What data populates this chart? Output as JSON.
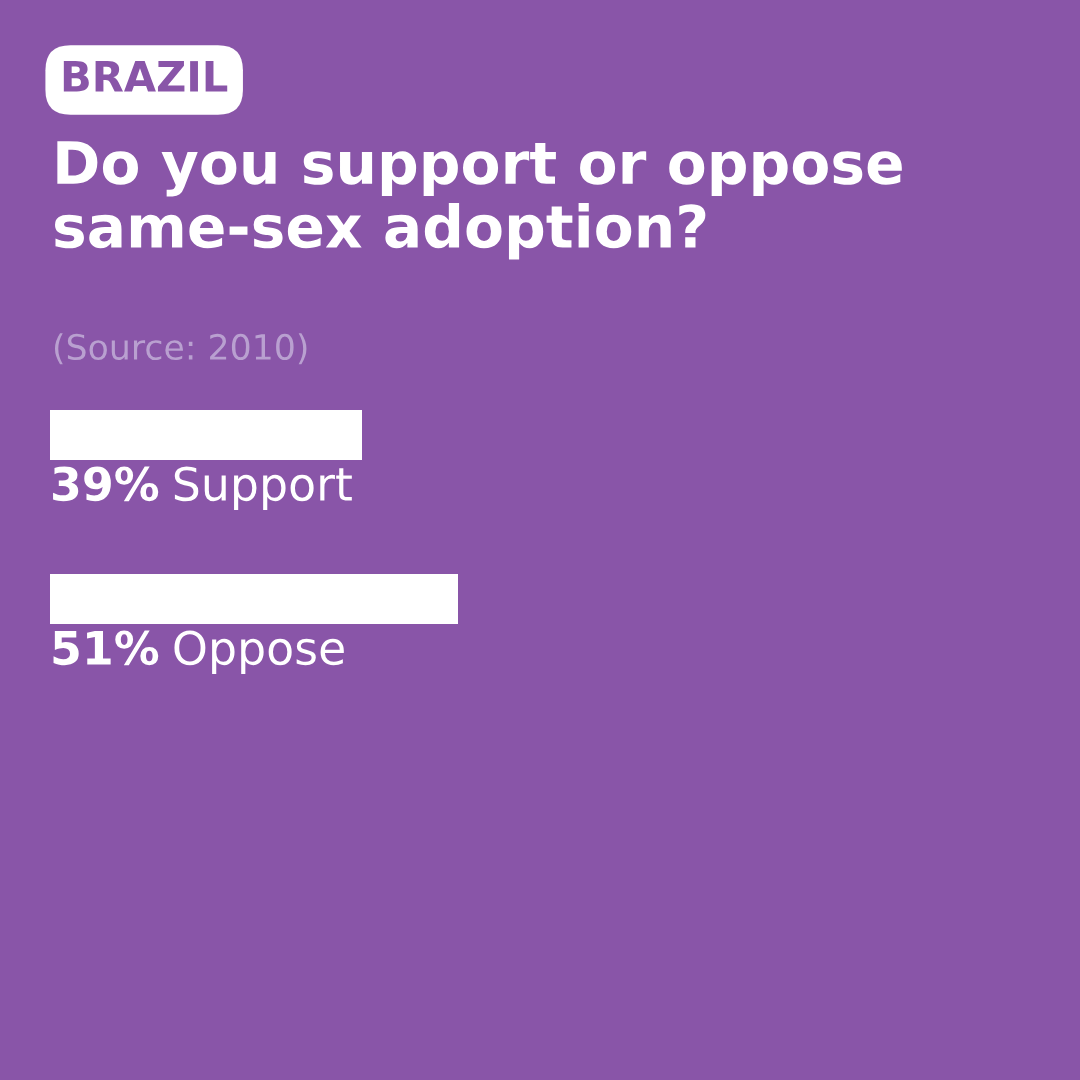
{
  "chart_data": {
    "type": "bar",
    "orientation": "horizontal",
    "title": "Do you support or oppose same-sex adoption?",
    "annotations": [
      "BRAZIL",
      "(Source: 2010)"
    ],
    "categories": [
      "Support",
      "Oppose"
    ],
    "values": [
      39,
      51
    ],
    "value_labels": [
      "39%",
      "51%"
    ],
    "color": "#ffffff"
  }
}
